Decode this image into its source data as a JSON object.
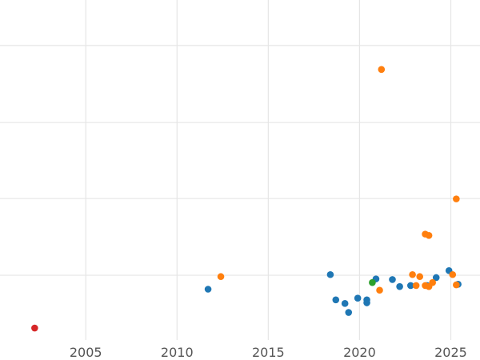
{
  "chart_data": {
    "type": "scatter",
    "title": "",
    "xlabel": "",
    "ylabel": "",
    "grid": true,
    "legend": "none",
    "xlim": [
      2000.3,
      2026.6
    ],
    "ylim": [
      0,
      1
    ],
    "x_ticks": [
      2005,
      2010,
      2015,
      2020,
      2025
    ],
    "x_tick_labels": [
      "2005",
      "2010",
      "2015",
      "2020",
      "2025"
    ],
    "y_grid": [
      0.195,
      0.426,
      0.655,
      0.887
    ],
    "series": [
      {
        "color": "#1f77b4",
        "points": [
          {
            "x": 2011.7,
            "y": 0.153
          },
          {
            "x": 2018.4,
            "y": 0.197
          },
          {
            "x": 2018.7,
            "y": 0.121
          },
          {
            "x": 2019.2,
            "y": 0.11
          },
          {
            "x": 2019.4,
            "y": 0.083
          },
          {
            "x": 2019.9,
            "y": 0.126
          },
          {
            "x": 2020.4,
            "y": 0.121
          },
          {
            "x": 2020.4,
            "y": 0.112
          },
          {
            "x": 2020.9,
            "y": 0.184
          },
          {
            "x": 2021.8,
            "y": 0.182
          },
          {
            "x": 2022.2,
            "y": 0.161
          },
          {
            "x": 2022.8,
            "y": 0.164
          },
          {
            "x": 2023.7,
            "y": 0.164
          },
          {
            "x": 2024.2,
            "y": 0.188
          },
          {
            "x": 2024.9,
            "y": 0.209
          },
          {
            "x": 2025.4,
            "y": 0.168
          }
        ]
      },
      {
        "color": "#ff7f0e",
        "points": [
          {
            "x": 2012.4,
            "y": 0.191
          },
          {
            "x": 2021.1,
            "y": 0.15
          },
          {
            "x": 2021.2,
            "y": 0.815
          },
          {
            "x": 2022.9,
            "y": 0.197
          },
          {
            "x": 2023.1,
            "y": 0.164
          },
          {
            "x": 2023.3,
            "y": 0.191
          },
          {
            "x": 2023.6,
            "y": 0.164
          },
          {
            "x": 2023.6,
            "y": 0.319
          },
          {
            "x": 2023.8,
            "y": 0.315
          },
          {
            "x": 2023.8,
            "y": 0.161
          },
          {
            "x": 2024.0,
            "y": 0.173
          },
          {
            "x": 2025.1,
            "y": 0.197
          },
          {
            "x": 2025.3,
            "y": 0.166
          },
          {
            "x": 2025.3,
            "y": 0.425
          }
        ]
      },
      {
        "color": "#2ca02c",
        "points": [
          {
            "x": 2020.7,
            "y": 0.173
          }
        ]
      },
      {
        "color": "#d62728",
        "points": [
          {
            "x": 2002.2,
            "y": 0.036
          }
        ]
      }
    ]
  }
}
